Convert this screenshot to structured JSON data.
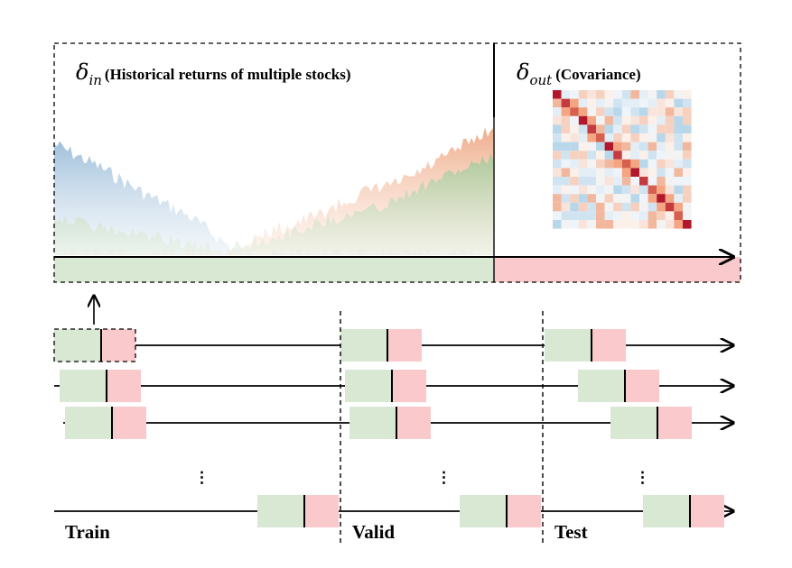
{
  "top_panel": {
    "input_label": {
      "symbol": "δ",
      "subscript": "in",
      "text": "(Historical returns of multiple stocks)"
    },
    "output_label": {
      "symbol": "δ",
      "subscript": "out",
      "text": "(Covariance)"
    }
  },
  "splits": {
    "train": "Train",
    "valid": "Valid",
    "test": "Test"
  },
  "ellipsis": "⋮",
  "colors": {
    "input_green": "#d9e8d3",
    "output_pink": "#f9c9cc",
    "series_blue": "#a9c6e0",
    "series_orange": "#f1b89a",
    "series_green": "#b9d3a8",
    "heat_red": "#b2182b",
    "heat_blue": "#92c5de"
  }
}
